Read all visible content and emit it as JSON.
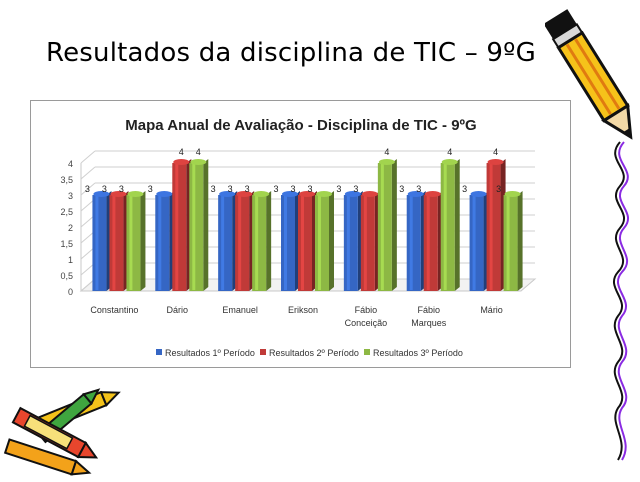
{
  "slide": {
    "title": "Resultados da disciplina de TIC – 9ºG"
  },
  "colors": {
    "series": [
      "#3566c4",
      "#c03a38",
      "#8db844"
    ]
  },
  "decorations": {
    "top_right": "pencil-icon",
    "bottom_left": "crayons-icon"
  },
  "chart_data": {
    "type": "bar",
    "title": "Mapa Anual de Avaliação - Disciplina de TIC - 9ºG",
    "categories": [
      "Constantino",
      "Dário",
      "Emanuel",
      "Erikson",
      "Fábio Conceição",
      "Fábio Marques",
      "Mário"
    ],
    "series": [
      {
        "name": "Resultados 1º Período",
        "values": [
          3,
          3,
          3,
          3,
          3,
          3,
          3
        ]
      },
      {
        "name": "Resultados 2º Período",
        "values": [
          3,
          4,
          3,
          3,
          3,
          3,
          4
        ]
      },
      {
        "name": "Resultados 3º Período",
        "values": [
          3,
          4,
          3,
          3,
          4,
          4,
          3
        ]
      }
    ],
    "y_ticks": [
      "0",
      "0,5",
      "1",
      "1,5",
      "2",
      "2,5",
      "3",
      "3,5",
      "4"
    ],
    "ylim": [
      0,
      4
    ],
    "grid": true,
    "legend_position": "bottom",
    "data_labels": true
  }
}
